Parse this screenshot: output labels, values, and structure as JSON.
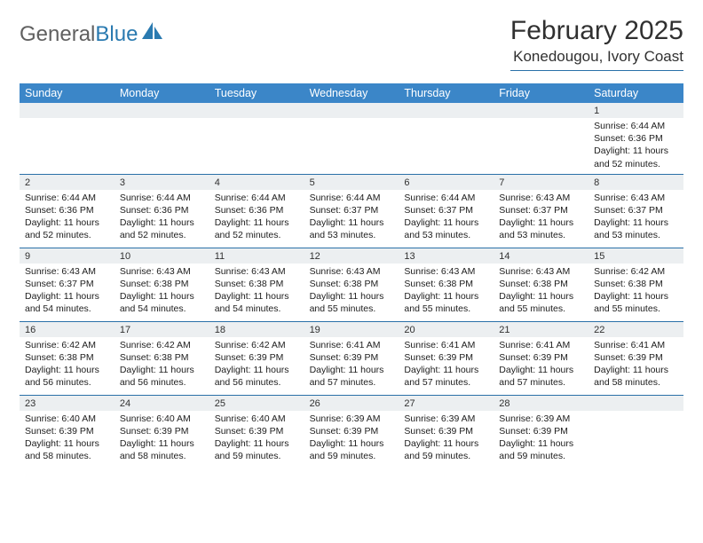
{
  "logo": {
    "text1": "General",
    "text2": "Blue"
  },
  "title": "February 2025",
  "location": "Konedougou, Ivory Coast",
  "colors": {
    "header_bar": "#3b86c8",
    "rule": "#2a70a8",
    "strip": "#eceff1",
    "logo_gray": "#606060",
    "logo_blue": "#2a7ab0",
    "text": "#202020"
  },
  "layout": {
    "columns": 7,
    "rows": 5
  },
  "weekdays": [
    "Sunday",
    "Monday",
    "Tuesday",
    "Wednesday",
    "Thursday",
    "Friday",
    "Saturday"
  ],
  "weeks": [
    [
      {
        "n": "",
        "sr": "",
        "ss": "",
        "dl": ""
      },
      {
        "n": "",
        "sr": "",
        "ss": "",
        "dl": ""
      },
      {
        "n": "",
        "sr": "",
        "ss": "",
        "dl": ""
      },
      {
        "n": "",
        "sr": "",
        "ss": "",
        "dl": ""
      },
      {
        "n": "",
        "sr": "",
        "ss": "",
        "dl": ""
      },
      {
        "n": "",
        "sr": "",
        "ss": "",
        "dl": ""
      },
      {
        "n": "1",
        "sr": "Sunrise: 6:44 AM",
        "ss": "Sunset: 6:36 PM",
        "dl": "Daylight: 11 hours and 52 minutes."
      }
    ],
    [
      {
        "n": "2",
        "sr": "Sunrise: 6:44 AM",
        "ss": "Sunset: 6:36 PM",
        "dl": "Daylight: 11 hours and 52 minutes."
      },
      {
        "n": "3",
        "sr": "Sunrise: 6:44 AM",
        "ss": "Sunset: 6:36 PM",
        "dl": "Daylight: 11 hours and 52 minutes."
      },
      {
        "n": "4",
        "sr": "Sunrise: 6:44 AM",
        "ss": "Sunset: 6:36 PM",
        "dl": "Daylight: 11 hours and 52 minutes."
      },
      {
        "n": "5",
        "sr": "Sunrise: 6:44 AM",
        "ss": "Sunset: 6:37 PM",
        "dl": "Daylight: 11 hours and 53 minutes."
      },
      {
        "n": "6",
        "sr": "Sunrise: 6:44 AM",
        "ss": "Sunset: 6:37 PM",
        "dl": "Daylight: 11 hours and 53 minutes."
      },
      {
        "n": "7",
        "sr": "Sunrise: 6:43 AM",
        "ss": "Sunset: 6:37 PM",
        "dl": "Daylight: 11 hours and 53 minutes."
      },
      {
        "n": "8",
        "sr": "Sunrise: 6:43 AM",
        "ss": "Sunset: 6:37 PM",
        "dl": "Daylight: 11 hours and 53 minutes."
      }
    ],
    [
      {
        "n": "9",
        "sr": "Sunrise: 6:43 AM",
        "ss": "Sunset: 6:37 PM",
        "dl": "Daylight: 11 hours and 54 minutes."
      },
      {
        "n": "10",
        "sr": "Sunrise: 6:43 AM",
        "ss": "Sunset: 6:38 PM",
        "dl": "Daylight: 11 hours and 54 minutes."
      },
      {
        "n": "11",
        "sr": "Sunrise: 6:43 AM",
        "ss": "Sunset: 6:38 PM",
        "dl": "Daylight: 11 hours and 54 minutes."
      },
      {
        "n": "12",
        "sr": "Sunrise: 6:43 AM",
        "ss": "Sunset: 6:38 PM",
        "dl": "Daylight: 11 hours and 55 minutes."
      },
      {
        "n": "13",
        "sr": "Sunrise: 6:43 AM",
        "ss": "Sunset: 6:38 PM",
        "dl": "Daylight: 11 hours and 55 minutes."
      },
      {
        "n": "14",
        "sr": "Sunrise: 6:43 AM",
        "ss": "Sunset: 6:38 PM",
        "dl": "Daylight: 11 hours and 55 minutes."
      },
      {
        "n": "15",
        "sr": "Sunrise: 6:42 AM",
        "ss": "Sunset: 6:38 PM",
        "dl": "Daylight: 11 hours and 55 minutes."
      }
    ],
    [
      {
        "n": "16",
        "sr": "Sunrise: 6:42 AM",
        "ss": "Sunset: 6:38 PM",
        "dl": "Daylight: 11 hours and 56 minutes."
      },
      {
        "n": "17",
        "sr": "Sunrise: 6:42 AM",
        "ss": "Sunset: 6:38 PM",
        "dl": "Daylight: 11 hours and 56 minutes."
      },
      {
        "n": "18",
        "sr": "Sunrise: 6:42 AM",
        "ss": "Sunset: 6:39 PM",
        "dl": "Daylight: 11 hours and 56 minutes."
      },
      {
        "n": "19",
        "sr": "Sunrise: 6:41 AM",
        "ss": "Sunset: 6:39 PM",
        "dl": "Daylight: 11 hours and 57 minutes."
      },
      {
        "n": "20",
        "sr": "Sunrise: 6:41 AM",
        "ss": "Sunset: 6:39 PM",
        "dl": "Daylight: 11 hours and 57 minutes."
      },
      {
        "n": "21",
        "sr": "Sunrise: 6:41 AM",
        "ss": "Sunset: 6:39 PM",
        "dl": "Daylight: 11 hours and 57 minutes."
      },
      {
        "n": "22",
        "sr": "Sunrise: 6:41 AM",
        "ss": "Sunset: 6:39 PM",
        "dl": "Daylight: 11 hours and 58 minutes."
      }
    ],
    [
      {
        "n": "23",
        "sr": "Sunrise: 6:40 AM",
        "ss": "Sunset: 6:39 PM",
        "dl": "Daylight: 11 hours and 58 minutes."
      },
      {
        "n": "24",
        "sr": "Sunrise: 6:40 AM",
        "ss": "Sunset: 6:39 PM",
        "dl": "Daylight: 11 hours and 58 minutes."
      },
      {
        "n": "25",
        "sr": "Sunrise: 6:40 AM",
        "ss": "Sunset: 6:39 PM",
        "dl": "Daylight: 11 hours and 59 minutes."
      },
      {
        "n": "26",
        "sr": "Sunrise: 6:39 AM",
        "ss": "Sunset: 6:39 PM",
        "dl": "Daylight: 11 hours and 59 minutes."
      },
      {
        "n": "27",
        "sr": "Sunrise: 6:39 AM",
        "ss": "Sunset: 6:39 PM",
        "dl": "Daylight: 11 hours and 59 minutes."
      },
      {
        "n": "28",
        "sr": "Sunrise: 6:39 AM",
        "ss": "Sunset: 6:39 PM",
        "dl": "Daylight: 11 hours and 59 minutes."
      },
      {
        "n": "",
        "sr": "",
        "ss": "",
        "dl": ""
      }
    ]
  ]
}
